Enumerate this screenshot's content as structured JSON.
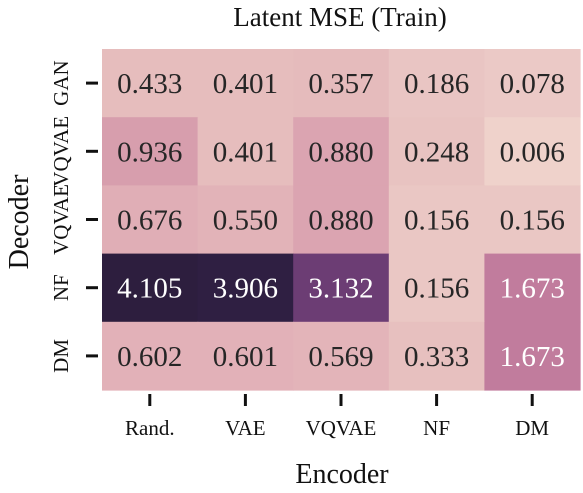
{
  "chart_data": {
    "type": "heatmap",
    "title": "Latent MSE (Train)",
    "xlabel": "Encoder",
    "ylabel": "Decoder",
    "x_categories": [
      "Rand.",
      "VAE",
      "VQVAE",
      "NF",
      "DM"
    ],
    "y_categories": [
      "GAN",
      "VQVAE",
      "VQVAE",
      "NF",
      "DM"
    ],
    "values": [
      [
        0.433,
        0.401,
        0.357,
        0.186,
        0.078
      ],
      [
        0.936,
        0.401,
        0.88,
        0.248,
        0.006
      ],
      [
        0.676,
        0.55,
        0.88,
        0.156,
        0.156
      ],
      [
        4.105,
        3.906,
        3.132,
        0.156,
        1.673
      ],
      [
        0.602,
        0.601,
        0.569,
        0.333,
        1.673
      ]
    ],
    "labels": [
      [
        "0.433",
        "0.401",
        "0.357",
        "0.186",
        "0.078"
      ],
      [
        "0.936",
        "0.401",
        "0.880",
        "0.248",
        "0.006"
      ],
      [
        "0.676",
        "0.550",
        "0.880",
        "0.156",
        "0.156"
      ],
      [
        "4.105",
        "3.906",
        "3.132",
        "0.156",
        "1.673"
      ],
      [
        "0.602",
        "0.601",
        "0.569",
        "0.333",
        "1.673"
      ]
    ],
    "colors": [
      [
        "#e6bdbd",
        "#e6bdbd",
        "#e5bbbc",
        "#e9c5c3",
        "#ebc9c6"
      ],
      [
        "#d79ead",
        "#e6bdbd",
        "#dba4b1",
        "#e8c3c1",
        "#efd2cb"
      ],
      [
        "#e0aeb6",
        "#e2b3b8",
        "#dba4b1",
        "#eac7c4",
        "#eac7c4"
      ],
      [
        "#2d1e3e",
        "#2f1f42",
        "#6c3d74",
        "#eac7c4",
        "#c17c9d"
      ],
      [
        "#e2b1b8",
        "#e2b1b8",
        "#e3b4b9",
        "#e7c0bf",
        "#c17c9d"
      ]
    ],
    "text_colors": [
      [
        "#262626",
        "#262626",
        "#262626",
        "#262626",
        "#262626"
      ],
      [
        "#262626",
        "#262626",
        "#262626",
        "#262626",
        "#262626"
      ],
      [
        "#262626",
        "#262626",
        "#262626",
        "#262626",
        "#262626"
      ],
      [
        "#ffffff",
        "#ffffff",
        "#ffffff",
        "#262626",
        "#ffffff"
      ],
      [
        "#262626",
        "#262626",
        "#262626",
        "#262626",
        "#ffffff"
      ]
    ],
    "colorbar": false,
    "grid": false
  }
}
